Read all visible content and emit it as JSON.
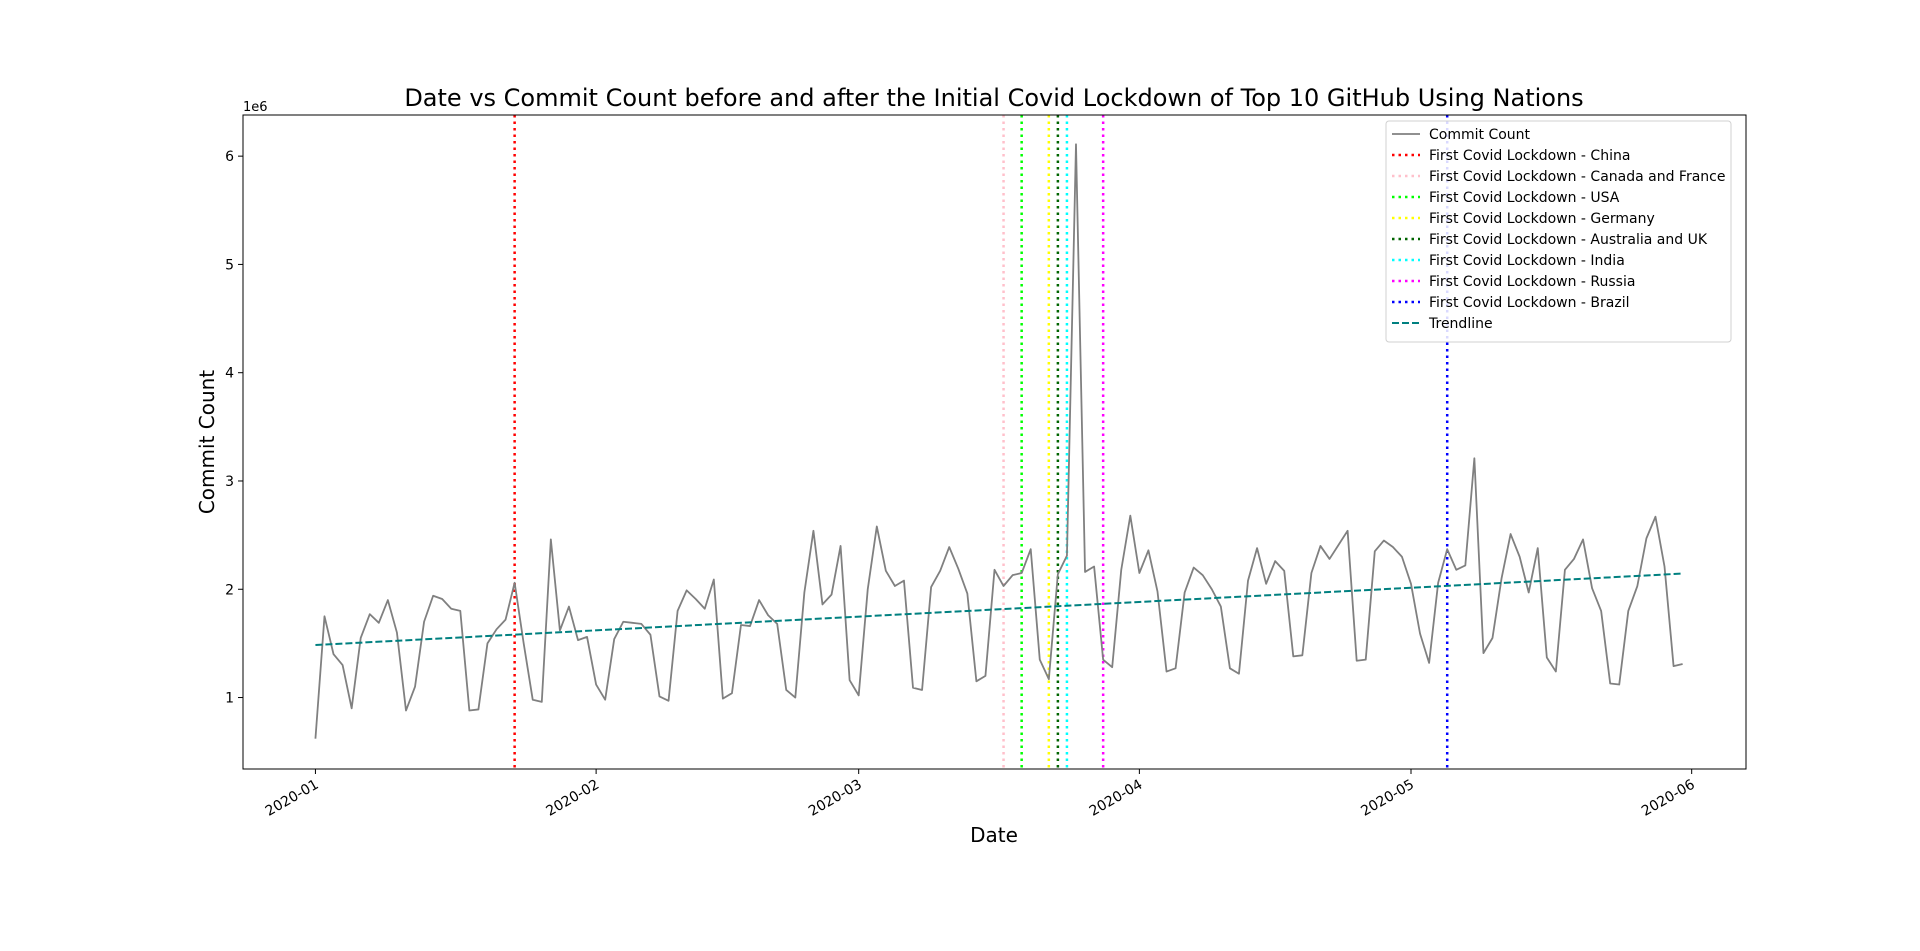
{
  "chart_data": {
    "type": "line",
    "title": "Date vs Commit Count before and after the Initial Covid Lockdown of Top 10 GitHub Using Nations",
    "xlabel": "Date",
    "ylabel": "Commit Count",
    "y_scale_label": "1e6",
    "x_range": [
      "2019-12-24",
      "2020-06-07"
    ],
    "ylim": [
      0.34,
      6.38
    ],
    "y_unit_multiplier": 1000000,
    "x_ticks": [
      "2020-01-01",
      "2020-02-01",
      "2020-03-01",
      "2020-04-01",
      "2020-05-01",
      "2020-06-01"
    ],
    "x_tick_labels": [
      "2020-01",
      "2020-02",
      "2020-03",
      "2020-04",
      "2020-05",
      "2020-06"
    ],
    "y_ticks": [
      1,
      2,
      3,
      4,
      5,
      6
    ],
    "y_tick_labels": [
      "1",
      "2",
      "3",
      "4",
      "5",
      "6"
    ],
    "grid": false,
    "legend_position": "top-right",
    "start_date": "2020-01-01",
    "series": [
      {
        "name": "Commit Count",
        "color": "#808080",
        "style": "solid",
        "values": [
          0.62,
          1.75,
          1.4,
          1.3,
          0.9,
          1.55,
          1.77,
          1.69,
          1.9,
          1.6,
          0.88,
          1.1,
          1.7,
          1.94,
          1.91,
          1.82,
          1.8,
          0.88,
          0.89,
          1.5,
          1.63,
          1.72,
          2.06,
          1.5,
          0.98,
          0.96,
          2.46,
          1.62,
          1.84,
          1.53,
          1.56,
          1.12,
          0.98,
          1.54,
          1.7,
          1.69,
          1.68,
          1.58,
          1.01,
          0.97,
          1.8,
          1.99,
          1.91,
          1.82,
          2.09,
          0.99,
          1.04,
          1.67,
          1.66,
          1.9,
          1.76,
          1.68,
          1.07,
          1.0,
          1.97,
          2.54,
          1.86,
          1.95,
          2.4,
          1.16,
          1.02,
          2.0,
          2.58,
          2.17,
          2.03,
          2.08,
          1.09,
          1.07,
          2.02,
          2.17,
          2.39,
          2.19,
          1.96,
          1.15,
          1.2,
          2.18,
          2.03,
          2.13,
          2.15,
          2.37,
          1.35,
          1.17,
          2.14,
          2.31,
          6.11,
          2.16,
          2.21,
          1.35,
          1.28,
          2.18,
          2.68,
          2.15,
          2.36,
          1.98,
          1.24,
          1.27,
          1.97,
          2.2,
          2.13,
          2.0,
          1.84,
          1.27,
          1.22,
          2.08,
          2.38,
          2.05,
          2.26,
          2.17,
          1.38,
          1.39,
          2.15,
          2.4,
          2.28,
          2.41,
          2.54,
          1.34,
          1.35,
          2.35,
          2.45,
          2.39,
          2.3,
          2.05,
          1.59,
          1.32,
          2.06,
          2.37,
          2.18,
          2.22,
          3.21,
          1.41,
          1.55,
          2.1,
          2.51,
          2.3,
          1.97,
          2.38,
          1.37,
          1.24,
          2.18,
          2.28,
          2.46,
          2.01,
          1.8,
          1.13,
          1.12,
          1.8,
          2.03,
          2.47,
          2.67,
          2.21,
          1.29,
          1.31
        ]
      },
      {
        "name": "Trendline",
        "color": "#008080",
        "style": "dashed",
        "start": [
          "2020-01-01",
          1.485
        ],
        "end": [
          "2020-05-31",
          2.145
        ]
      }
    ],
    "lockdowns": [
      {
        "name": "First Covid Lockdown - China",
        "date": "2020-01-23",
        "color": "#ff0000"
      },
      {
        "name": "First Covid Lockdown - Canada and France",
        "date": "2020-03-17",
        "color": "#ffc0cb"
      },
      {
        "name": "First Covid Lockdown - USA",
        "date": "2020-03-19",
        "color": "#00ff00"
      },
      {
        "name": "First Covid Lockdown - Germany",
        "date": "2020-03-22",
        "color": "#ffff00"
      },
      {
        "name": "First Covid Lockdown - Australia and UK",
        "date": "2020-03-23",
        "color": "#006400"
      },
      {
        "name": "First Covid Lockdown - India",
        "date": "2020-03-24",
        "color": "#00ffff"
      },
      {
        "name": "First Covid Lockdown - Russia",
        "date": "2020-03-28",
        "color": "#ff00ff"
      },
      {
        "name": "First Covid Lockdown - Brazil",
        "date": "2020-05-05",
        "color": "#0000ff"
      }
    ]
  }
}
